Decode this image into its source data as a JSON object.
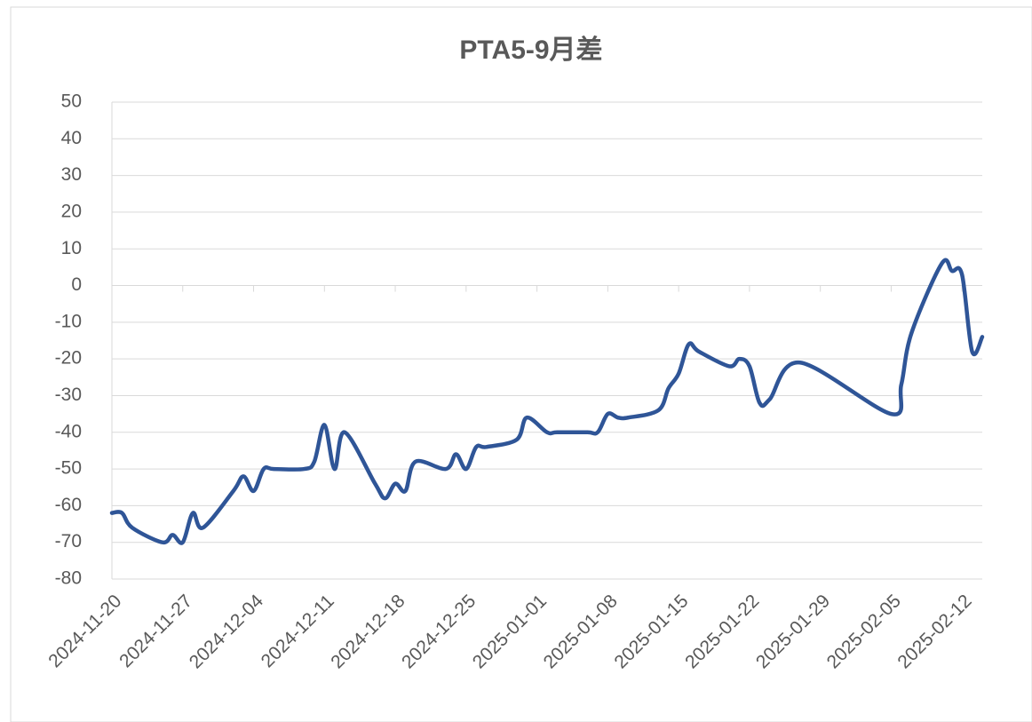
{
  "chart_data": {
    "type": "line",
    "title": "PTA5-9月差",
    "x": [
      "2024-11-20",
      "2024-11-21",
      "2024-11-22",
      "2024-11-25",
      "2024-11-26",
      "2024-11-27",
      "2024-11-28",
      "2024-11-29",
      "2024-12-02",
      "2024-12-03",
      "2024-12-04",
      "2024-12-05",
      "2024-12-06",
      "2024-12-09",
      "2024-12-10",
      "2024-12-11",
      "2024-12-12",
      "2024-12-13",
      "2024-12-16",
      "2024-12-17",
      "2024-12-18",
      "2024-12-19",
      "2024-12-20",
      "2024-12-23",
      "2024-12-24",
      "2024-12-25",
      "2024-12-26",
      "2024-12-27",
      "2024-12-30",
      "2024-12-31",
      "2025-01-02",
      "2025-01-03",
      "2025-01-06",
      "2025-01-07",
      "2025-01-08",
      "2025-01-09",
      "2025-01-10",
      "2025-01-13",
      "2025-01-14",
      "2025-01-15",
      "2025-01-16",
      "2025-01-17",
      "2025-01-20",
      "2025-01-21",
      "2025-01-22",
      "2025-01-23",
      "2025-01-24",
      "2025-01-27",
      "2025-02-05",
      "2025-02-06",
      "2025-02-07",
      "2025-02-10",
      "2025-02-11",
      "2025-02-12",
      "2025-02-13",
      "2025-02-14"
    ],
    "series": [
      {
        "name": "PTA5-9月差",
        "color": "#2f5597",
        "values": [
          -62,
          -62,
          -66,
          -70,
          -68,
          -70,
          -62,
          -66,
          -56,
          -52,
          -56,
          -50,
          -50,
          -50,
          -48,
          -38,
          -50,
          -40,
          -54,
          -58,
          -54,
          -56,
          -48,
          -50,
          -46,
          -50,
          -44,
          -44,
          -42,
          -36,
          -40,
          -40,
          -40,
          -40,
          -35,
          -36,
          -36,
          -34,
          -28,
          -24,
          -16,
          -18,
          -22,
          -20,
          -22,
          -32,
          -31,
          -21,
          -35,
          -27,
          -13,
          6,
          4,
          3,
          -18,
          -14
        ]
      }
    ],
    "xlim": [
      "2024-11-20",
      "2025-02-14"
    ],
    "xticks": [
      "2024-11-20",
      "2024-11-27",
      "2024-12-04",
      "2024-12-11",
      "2024-12-18",
      "2024-12-25",
      "2025-01-01",
      "2025-01-08",
      "2025-01-15",
      "2025-01-22",
      "2025-01-29",
      "2025-02-05",
      "2025-02-12"
    ],
    "ylim": [
      -80,
      50
    ],
    "yticks": [
      -80,
      -70,
      -60,
      -50,
      -40,
      -30,
      -20,
      -10,
      0,
      10,
      20,
      30,
      40,
      50
    ],
    "grid": true
  }
}
